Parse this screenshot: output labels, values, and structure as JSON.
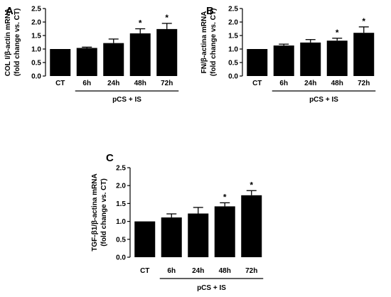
{
  "chart_data": [
    {
      "panel": "A",
      "type": "bar",
      "categories": [
        "CT",
        "6h",
        "24h",
        "48h",
        "72h"
      ],
      "values": [
        1.0,
        1.04,
        1.22,
        1.58,
        1.74
      ],
      "errors": [
        0.0,
        0.03,
        0.15,
        0.17,
        0.21
      ],
      "significant": [
        false,
        false,
        false,
        true,
        true
      ],
      "ylabel_lines": [
        "COL I/β-actin mRNA",
        "(fold change vs. CT)"
      ],
      "ylim": [
        0,
        2.5
      ],
      "yticks": [
        "0.0",
        "0.5",
        "1.0",
        "1.5",
        "2.0",
        "2.5"
      ],
      "group_label": "pCS + IS",
      "significance_marker": "*",
      "bar_color": "#000000",
      "grid": false
    },
    {
      "panel": "B",
      "type": "bar",
      "categories": [
        "CT",
        "6h",
        "24h",
        "48h",
        "72h"
      ],
      "values": [
        1.0,
        1.13,
        1.24,
        1.31,
        1.6
      ],
      "errors": [
        0.0,
        0.05,
        0.11,
        0.09,
        0.22
      ],
      "significant": [
        false,
        false,
        false,
        true,
        true
      ],
      "ylabel_lines": [
        "FN/β-actina mRNA",
        "(fold change vs. CT)"
      ],
      "ylim": [
        0,
        2.5
      ],
      "yticks": [
        "0.0",
        "0.5",
        "1.0",
        "1.5",
        "2.0",
        "2.5"
      ],
      "group_label": "pCS + IS",
      "significance_marker": "*",
      "bar_color": "#000000",
      "grid": false
    },
    {
      "panel": "C",
      "type": "bar",
      "categories": [
        "CT",
        "6h",
        "24h",
        "48h",
        "72h"
      ],
      "values": [
        1.0,
        1.11,
        1.22,
        1.42,
        1.73
      ],
      "errors": [
        0.0,
        0.1,
        0.17,
        0.1,
        0.13
      ],
      "significant": [
        false,
        false,
        false,
        true,
        true
      ],
      "ylabel_lines": [
        "TGF-β1/β-actina mRNA",
        "(fold change vs. CT)"
      ],
      "ylim": [
        0,
        2.5
      ],
      "yticks": [
        "0.0",
        "0.5",
        "1.0",
        "1.5",
        "2.0",
        "2.5"
      ],
      "group_label": "pCS + IS",
      "significance_marker": "*",
      "bar_color": "#000000",
      "grid": false
    }
  ]
}
